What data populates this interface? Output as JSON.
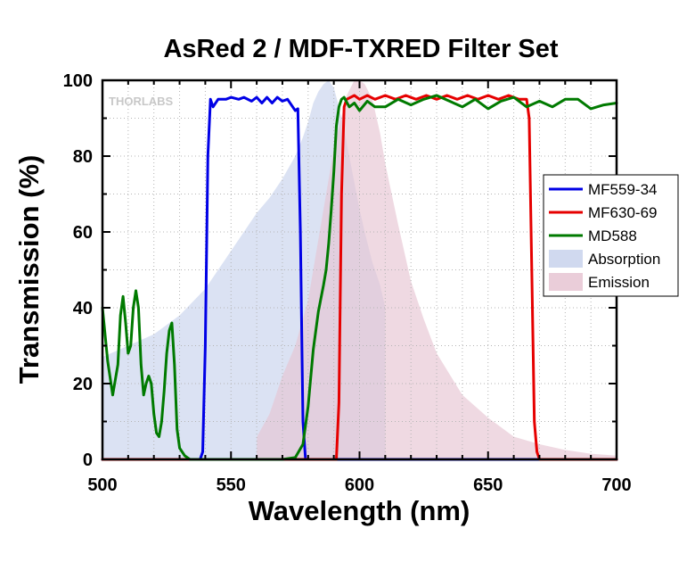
{
  "chart_data": {
    "type": "line",
    "title": "AsRed 2 / MDF-TXRED Filter Set",
    "xlabel": "Wavelength (nm)",
    "ylabel": "Transmission (%)",
    "xlim": [
      500,
      700
    ],
    "ylim": [
      0,
      100
    ],
    "x_ticks": [
      500,
      550,
      600,
      650,
      700
    ],
    "y_ticks": [
      0,
      20,
      40,
      60,
      80,
      100
    ],
    "grid": true,
    "legend_position": "right",
    "watermark": "THORLABS",
    "series": [
      {
        "name": "MF559-34",
        "kind": "line",
        "color": "#0000e6",
        "x": [
          500,
          538,
          539,
          540,
          541,
          542,
          543,
          545,
          548,
          550,
          553,
          555,
          558,
          560,
          562,
          564,
          566,
          568,
          570,
          572,
          574,
          575,
          576,
          577,
          578,
          579,
          580,
          700
        ],
        "y": [
          0,
          0,
          2,
          30,
          80,
          95,
          93,
          95,
          95,
          95.5,
          95,
          95.5,
          94.5,
          95.5,
          94,
          95.5,
          94,
          95.5,
          94.5,
          95,
          93,
          92,
          92.5,
          60,
          10,
          0,
          0,
          0
        ]
      },
      {
        "name": "MF630-69",
        "kind": "line",
        "color": "#e60000",
        "x": [
          500,
          591,
          592,
          593,
          594,
          595,
          598,
          600,
          603,
          606,
          610,
          614,
          618,
          622,
          626,
          630,
          634,
          638,
          642,
          646,
          650,
          654,
          658,
          662,
          665,
          666,
          667,
          668,
          669,
          670,
          700
        ],
        "y": [
          0,
          0,
          15,
          70,
          93,
          95,
          96,
          95,
          96,
          95,
          96,
          95,
          96,
          95,
          96,
          95,
          96,
          95,
          96,
          95,
          96,
          95,
          96,
          95,
          95,
          90,
          50,
          10,
          2,
          0,
          0
        ]
      },
      {
        "name": "MD588",
        "kind": "line",
        "color": "#007a00",
        "x": [
          500,
          502,
          504,
          506,
          507,
          508,
          509,
          510,
          511,
          512,
          513,
          514,
          515,
          516,
          517,
          518,
          519,
          520,
          521,
          522,
          523,
          524,
          525,
          526,
          527,
          528,
          529,
          530,
          532,
          534,
          540,
          570,
          575,
          578,
          580,
          582,
          584,
          586,
          587,
          588,
          589,
          590,
          591,
          592,
          593,
          594,
          596,
          598,
          600,
          603,
          606,
          610,
          615,
          620,
          625,
          630,
          635,
          640,
          645,
          650,
          655,
          660,
          665,
          670,
          675,
          680,
          685,
          690,
          695,
          700
        ],
        "y": [
          40,
          26,
          17,
          25,
          38,
          43,
          36,
          28,
          30,
          40,
          44.5,
          40,
          25,
          17,
          20,
          22,
          20,
          12,
          7,
          6,
          10,
          18,
          28,
          34,
          36,
          25,
          8,
          3,
          1,
          0,
          0,
          0,
          0.5,
          4,
          14,
          29,
          39,
          46,
          50,
          57,
          66,
          76,
          88,
          93,
          95,
          95.5,
          93,
          94,
          92,
          94.5,
          93,
          93,
          95,
          93.5,
          95,
          96,
          94.5,
          93,
          95,
          92.5,
          94.5,
          95.5,
          93,
          94.5,
          93,
          95,
          95,
          92.5,
          93.5,
          94
        ]
      },
      {
        "name": "Absorption",
        "kind": "area",
        "color": "#c8d2ec",
        "x": [
          500,
          510,
          520,
          530,
          540,
          545,
          550,
          555,
          560,
          565,
          570,
          575,
          578,
          580,
          582,
          584,
          586,
          588,
          590,
          592,
          594,
          596,
          598,
          600,
          602,
          605,
          608,
          610,
          610.1,
          700
        ],
        "y": [
          27,
          30,
          33,
          38,
          45,
          50,
          55,
          60,
          65,
          69,
          74,
          80,
          85,
          89,
          94,
          97,
          99,
          100,
          98,
          93,
          87,
          80,
          73,
          66,
          60,
          52,
          46,
          40,
          0,
          0
        ]
      },
      {
        "name": "Emission",
        "kind": "area",
        "color": "#e6c4d2",
        "x": [
          500,
          560,
          560.1,
          565,
          570,
          575,
          580,
          585,
          590,
          595,
          598,
          600,
          602,
          605,
          608,
          610,
          615,
          620,
          625,
          630,
          640,
          650,
          660,
          670,
          680,
          690,
          700
        ],
        "y": [
          0,
          0,
          6,
          12,
          22,
          30,
          42,
          62,
          82,
          96,
          100,
          100,
          99,
          95,
          86,
          78,
          62,
          47,
          37,
          28,
          17,
          11,
          6,
          4,
          2.5,
          1.5,
          1
        ]
      }
    ]
  }
}
